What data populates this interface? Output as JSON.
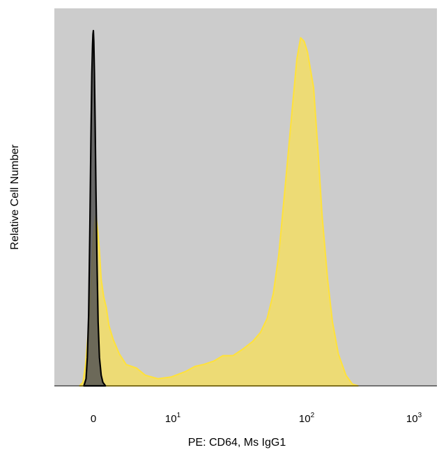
{
  "chart_data": {
    "type": "area",
    "title": "",
    "xlabel": "PE: CD64, Ms IgG1",
    "ylabel": "Relative Cell Number",
    "x_scale": "biexponential",
    "x_ticks": [
      {
        "value": 0,
        "base": "0",
        "exp": ""
      },
      {
        "value": 10,
        "base": "10",
        "exp": "1"
      },
      {
        "value": 100,
        "base": "10",
        "exp": "2"
      },
      {
        "value": 1000,
        "base": "10",
        "exp": "3"
      }
    ],
    "ylim": [
      0,
      100
    ],
    "grid": false,
    "legend": "none",
    "plot_background": "#cccccc",
    "series": [
      {
        "fill": "#f0dc6e",
        "stroke": "#ffe23a",
        "opacity": 0.92,
        "points": [
          [
            -1.6,
            0
          ],
          [
            -1.2,
            1
          ],
          [
            -0.9,
            6
          ],
          [
            -0.6,
            15
          ],
          [
            -0.3,
            27
          ],
          [
            0,
            42
          ],
          [
            0.15,
            46
          ],
          [
            0.3,
            48
          ],
          [
            0.5,
            44
          ],
          [
            0.7,
            38
          ],
          [
            0.9,
            30
          ],
          [
            1.2,
            25
          ],
          [
            1.5,
            22
          ],
          [
            1.8,
            17
          ],
          [
            2.3,
            13
          ],
          [
            3,
            9
          ],
          [
            3.8,
            6
          ],
          [
            5,
            5
          ],
          [
            6,
            3
          ],
          [
            7.5,
            2
          ],
          [
            9,
            2.5
          ],
          [
            11,
            4
          ],
          [
            13,
            5.5
          ],
          [
            15,
            6
          ],
          [
            18,
            7
          ],
          [
            21,
            8.5
          ],
          [
            25,
            8.5
          ],
          [
            30,
            10.5
          ],
          [
            35,
            12.5
          ],
          [
            40,
            15
          ],
          [
            45,
            19
          ],
          [
            50,
            26
          ],
          [
            55,
            37
          ],
          [
            62,
            58
          ],
          [
            70,
            80
          ],
          [
            75,
            92
          ],
          [
            80,
            98
          ],
          [
            85,
            97
          ],
          [
            90,
            94
          ],
          [
            100,
            84
          ],
          [
            110,
            66
          ],
          [
            120,
            48
          ],
          [
            135,
            30
          ],
          [
            150,
            18
          ],
          [
            170,
            9
          ],
          [
            200,
            3
          ],
          [
            230,
            0.5
          ],
          [
            260,
            0
          ]
        ]
      },
      {
        "fill": "#555555",
        "stroke": "#000000",
        "opacity": 0.85,
        "points": [
          [
            -1.1,
            0
          ],
          [
            -0.85,
            2
          ],
          [
            -0.7,
            8
          ],
          [
            -0.55,
            20
          ],
          [
            -0.4,
            45
          ],
          [
            -0.28,
            70
          ],
          [
            -0.18,
            88
          ],
          [
            -0.1,
            96
          ],
          [
            -0.05,
            99
          ],
          [
            0,
            100
          ],
          [
            0.05,
            97
          ],
          [
            0.12,
            88
          ],
          [
            0.2,
            74
          ],
          [
            0.3,
            55
          ],
          [
            0.42,
            35
          ],
          [
            0.55,
            18
          ],
          [
            0.7,
            8
          ],
          [
            0.9,
            3
          ],
          [
            1.1,
            1
          ],
          [
            1.4,
            0
          ]
        ]
      }
    ]
  }
}
